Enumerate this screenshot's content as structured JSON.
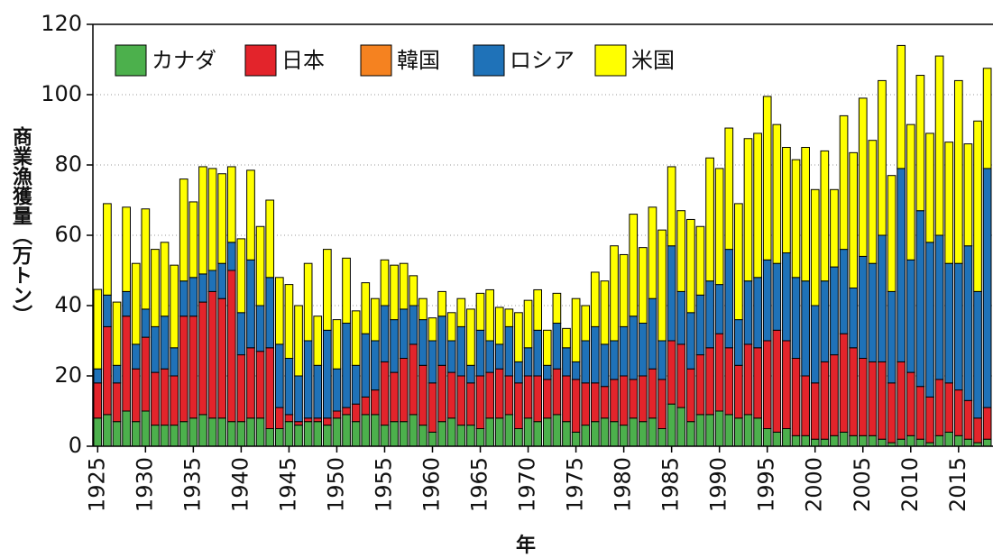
{
  "chart_data": {
    "type": "stacked_bar",
    "y_label": "商業漁獲量（万トン）",
    "x_label": "年",
    "x": [
      1925,
      1926,
      1927,
      1928,
      1929,
      1930,
      1931,
      1932,
      1933,
      1934,
      1935,
      1936,
      1937,
      1938,
      1939,
      1940,
      1941,
      1942,
      1943,
      1944,
      1945,
      1946,
      1947,
      1948,
      1949,
      1950,
      1951,
      1952,
      1953,
      1954,
      1955,
      1956,
      1957,
      1958,
      1959,
      1960,
      1961,
      1962,
      1963,
      1964,
      1965,
      1966,
      1967,
      1968,
      1969,
      1970,
      1971,
      1972,
      1973,
      1974,
      1975,
      1976,
      1977,
      1978,
      1979,
      1980,
      1981,
      1982,
      1983,
      1984,
      1985,
      1986,
      1987,
      1988,
      1989,
      1990,
      1991,
      1992,
      1993,
      1994,
      1995,
      1996,
      1997,
      1998,
      1999,
      2000,
      2001,
      2002,
      2003,
      2004,
      2005,
      2006,
      2007,
      2008,
      2009,
      2010,
      2011,
      2012,
      2013,
      2014,
      2015,
      2016,
      2017,
      2018
    ],
    "series": [
      {
        "name": "カナダ",
        "color": "#4cb04c",
        "values": [
          8,
          9,
          7,
          10,
          7,
          10,
          6,
          6,
          6,
          7,
          8,
          9,
          8,
          8,
          7,
          7,
          8,
          8,
          5,
          5,
          7,
          6,
          7,
          7,
          6,
          8,
          9,
          7,
          9,
          9,
          6,
          7,
          7,
          9,
          6,
          4,
          7,
          8,
          6,
          6,
          5,
          8,
          8,
          9,
          5,
          8,
          7,
          8,
          9,
          7,
          4,
          6,
          7,
          8,
          7,
          6,
          8,
          7,
          8,
          5,
          12,
          11,
          7,
          9,
          9,
          10,
          9,
          8,
          9,
          8,
          5,
          4,
          5,
          3,
          3,
          2,
          2,
          3,
          4,
          3,
          3,
          3,
          2,
          1,
          2,
          3,
          2,
          1,
          3,
          4,
          3,
          2,
          1,
          2
        ]
      },
      {
        "name": "日本",
        "color": "#e3242b",
        "values": [
          10,
          25,
          11,
          27,
          15,
          21,
          15,
          16,
          14,
          30,
          29,
          32,
          36,
          34,
          43,
          19,
          20,
          19,
          23,
          6,
          2,
          1,
          1,
          1,
          2,
          2,
          2,
          5,
          5,
          7,
          18,
          14,
          18,
          20,
          17,
          14,
          16,
          13,
          14,
          12,
          15,
          13,
          14,
          11,
          13,
          12,
          13,
          11,
          13,
          13,
          15,
          12,
          11,
          9,
          12,
          14,
          11,
          13,
          14,
          14,
          18,
          18,
          15,
          17,
          19,
          22,
          19,
          15,
          20,
          20,
          25,
          29,
          25,
          22,
          17,
          16,
          22,
          23,
          28,
          25,
          22,
          21,
          22,
          17,
          22,
          18,
          15,
          13,
          16,
          14,
          13,
          11,
          7,
          9
        ]
      },
      {
        "name": "韓国",
        "color": "#f58220",
        "values": [
          0,
          0,
          0,
          0,
          0,
          0,
          0,
          0,
          0,
          0,
          0,
          0,
          0,
          0,
          0,
          0,
          0,
          0,
          0,
          0,
          0,
          0,
          0,
          0,
          0,
          0,
          0,
          0,
          0,
          0,
          0,
          0,
          0,
          0,
          0,
          0,
          0,
          0,
          0,
          0,
          0,
          0,
          0,
          0,
          0,
          0,
          0,
          0,
          0,
          0,
          0,
          0,
          0,
          0,
          0,
          0,
          0,
          0,
          0,
          0,
          0,
          0,
          0,
          0,
          0,
          0,
          0,
          0,
          0,
          0,
          0,
          0,
          0,
          0,
          0,
          0,
          0,
          0,
          0,
          0,
          0,
          0,
          0,
          0,
          0,
          0,
          0,
          0,
          0,
          0,
          0,
          0,
          0,
          0
        ]
      },
      {
        "name": "ロシア",
        "color": "#1f72b8",
        "values": [
          4,
          9,
          5,
          7,
          7,
          8,
          13,
          15,
          8,
          10,
          11,
          8,
          6,
          10,
          8,
          12,
          25,
          13,
          20,
          18,
          16,
          13,
          22,
          15,
          25,
          12,
          24,
          11,
          18,
          14,
          16,
          15,
          14,
          11,
          13,
          12,
          14,
          9,
          14,
          5,
          13,
          9,
          7,
          14,
          6,
          8,
          13,
          4,
          13,
          8,
          5,
          12,
          16,
          12,
          11,
          14,
          18,
          15,
          20,
          11,
          27,
          15,
          16,
          17,
          19,
          14,
          28,
          13,
          18,
          20,
          23,
          19,
          25,
          23,
          27,
          22,
          23,
          25,
          24,
          17,
          29,
          28,
          36,
          26,
          55,
          32,
          50,
          44,
          41,
          34,
          36,
          44,
          36,
          68
        ]
      },
      {
        "name": "米国",
        "color": "#ffff00",
        "values": [
          22.6,
          26,
          18,
          24,
          23,
          28.5,
          22,
          21,
          23.5,
          29,
          21.5,
          30.5,
          29,
          25.5,
          21.5,
          21,
          25.5,
          22.5,
          22,
          19,
          21,
          20,
          22,
          14,
          23,
          14,
          18.5,
          15.5,
          14.5,
          12,
          13,
          15.5,
          13,
          8.5,
          6,
          6.5,
          7,
          8,
          8,
          16,
          10.5,
          14.5,
          10.5,
          5,
          14,
          13.5,
          11.5,
          10,
          8.5,
          5.5,
          18,
          10,
          15.5,
          18,
          27,
          20.5,
          29,
          21.5,
          26,
          31.5,
          22.5,
          23,
          26.5,
          19.5,
          35,
          33,
          34.5,
          33,
          40.5,
          41,
          46.5,
          39.5,
          30,
          33.5,
          38,
          33,
          37,
          22,
          38,
          38.5,
          45,
          35,
          44,
          33,
          35,
          38.5,
          38.5,
          31,
          51,
          34.5,
          52,
          29,
          48.5,
          28.5
        ]
      }
    ],
    "xlim": [
      1924.5,
      2018.6
    ],
    "xticks": [
      1925,
      1930,
      1935,
      1940,
      1945,
      1950,
      1955,
      1960,
      1965,
      1970,
      1975,
      1980,
      1985,
      1990,
      1995,
      2000,
      2005,
      2010,
      2015
    ],
    "ylim": [
      0,
      120
    ],
    "yticks": [
      0,
      20,
      40,
      60,
      80,
      100,
      120
    ],
    "grid": true
  }
}
